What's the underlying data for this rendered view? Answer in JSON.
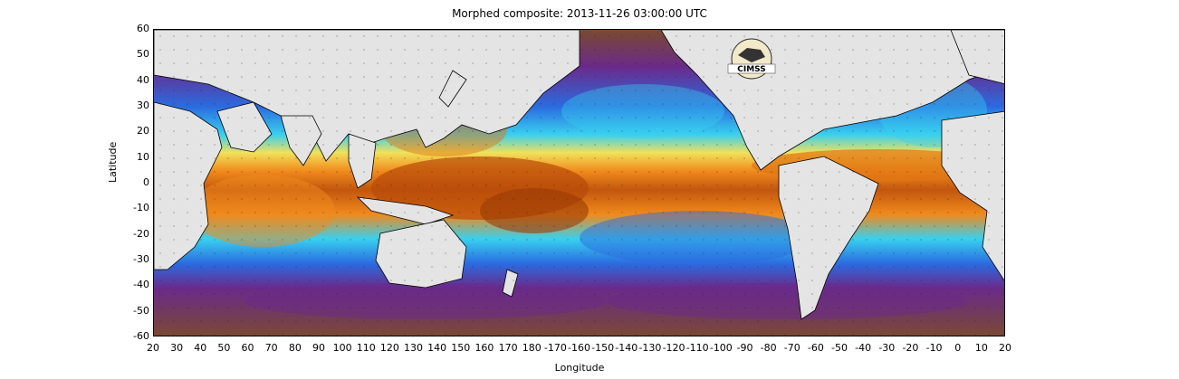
{
  "title": "Morphed composite: 2013-11-26 03:00:00 UTC",
  "xlabel": "Longitude",
  "ylabel": "Latitude",
  "xticks": [
    "20",
    "30",
    "40",
    "50",
    "60",
    "70",
    "80",
    "90",
    "100",
    "110",
    "120",
    "130",
    "140",
    "150",
    "160",
    "170",
    "180",
    "-170",
    "-160",
    "-150",
    "-140",
    "-130",
    "-120",
    "-110",
    "-100",
    "-90",
    "-80",
    "-70",
    "-60",
    "-50",
    "-40",
    "-30",
    "-20",
    "-10",
    "0",
    "10",
    "20"
  ],
  "yticks": [
    "60",
    "50",
    "40",
    "30",
    "20",
    "10",
    "0",
    "-10",
    "-20",
    "-30",
    "-40",
    "-50",
    "-60"
  ],
  "logo": {
    "text": "CIMSS"
  },
  "colors": {
    "ocean_low": "#8a5a3a",
    "purple": "#6a2a8a",
    "blue": "#2b6be0",
    "cyan": "#38d0ef",
    "green": "#6edc70",
    "yellow": "#f2e05a",
    "orange": "#f08a1c",
    "dark_orange": "#b84a08",
    "land": "#e4e4e4"
  }
}
